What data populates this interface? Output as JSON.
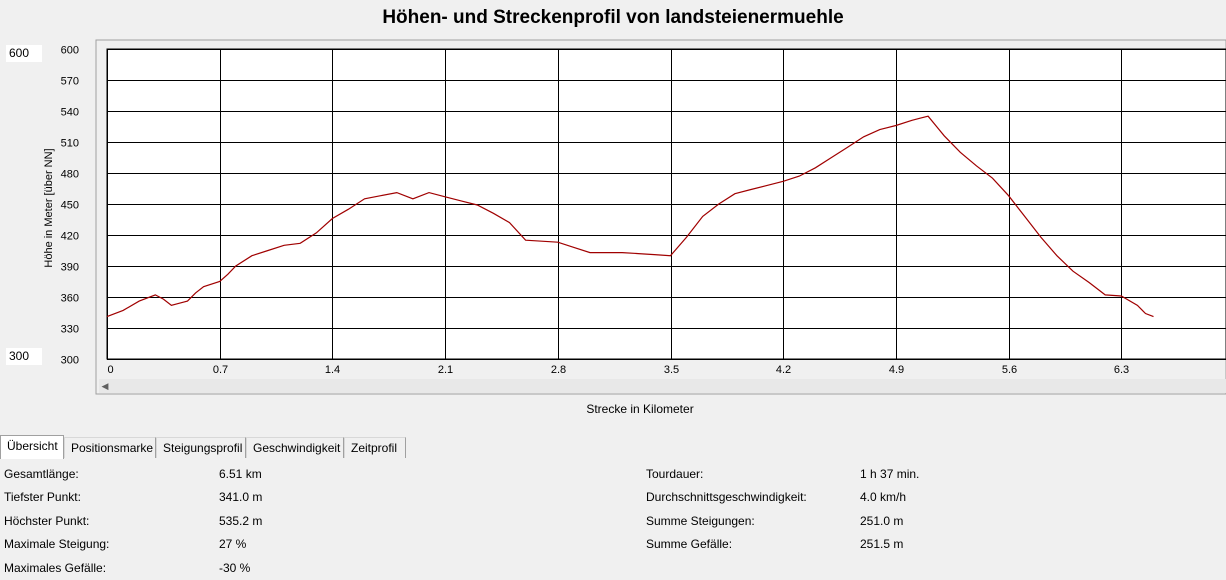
{
  "chart_data": {
    "type": "line",
    "title": "Höhen- und Streckenprofil von landsteienermuehle",
    "xlabel": "Strecke in Kilometer",
    "ylabel": "Höhe in Meter [über NN]",
    "xlim": [
      0,
      6.95
    ],
    "ylim": [
      300,
      600
    ],
    "x_ticks": [
      "0",
      "0.7",
      "1.4",
      "2.1",
      "2.8",
      "3.5",
      "4.2",
      "4.9",
      "5.6",
      "6.3"
    ],
    "y_ticks": [
      "600",
      "570",
      "540",
      "510",
      "480",
      "450",
      "420",
      "390",
      "360",
      "330",
      "300"
    ],
    "grid": true,
    "range_max": "600",
    "range_min": "300",
    "series": [
      {
        "color": "#a00000",
        "x": [
          0,
          0.1,
          0.2,
          0.3,
          0.35,
          0.4,
          0.45,
          0.5,
          0.55,
          0.6,
          0.7,
          0.75,
          0.8,
          0.9,
          1.0,
          1.1,
          1.2,
          1.3,
          1.4,
          1.5,
          1.6,
          1.7,
          1.8,
          1.9,
          2.0,
          2.1,
          2.2,
          2.3,
          2.4,
          2.5,
          2.6,
          2.7,
          2.8,
          2.9,
          3.0,
          3.1,
          3.2,
          3.3,
          3.4,
          3.5,
          3.6,
          3.7,
          3.8,
          3.9,
          4.0,
          4.1,
          4.2,
          4.3,
          4.4,
          4.5,
          4.6,
          4.7,
          4.8,
          4.9,
          5.0,
          5.05,
          5.1,
          5.2,
          5.3,
          5.4,
          5.5,
          5.6,
          5.7,
          5.8,
          5.9,
          6.0,
          6.1,
          6.2,
          6.3,
          6.4,
          6.45,
          6.5
        ],
        "y": [
          341,
          347,
          356,
          362,
          358,
          352,
          354,
          356,
          364,
          370,
          375,
          382,
          390,
          400,
          405,
          410,
          412,
          422,
          436,
          445,
          455,
          458,
          461,
          455,
          461,
          457,
          453,
          449,
          441,
          432,
          415,
          414,
          413,
          408,
          403,
          403,
          403,
          402,
          401,
          400,
          418,
          438,
          450,
          460,
          464,
          468,
          472,
          477,
          485,
          495,
          505,
          515,
          522,
          526,
          531,
          533,
          535,
          516,
          500,
          487,
          475,
          458,
          438,
          418,
          400,
          385,
          374,
          362,
          361,
          352,
          344,
          341
        ]
      }
    ]
  },
  "tabs": [
    "Übersicht",
    "Positionsmarke",
    "Steigungsprofil",
    "Geschwindigkeit",
    "Zeitprofil"
  ],
  "stats": {
    "left": [
      {
        "label": "Gesamtlänge:",
        "value": "6.51 km"
      },
      {
        "label": "Tiefster Punkt:",
        "value": "341.0 m"
      },
      {
        "label": "Höchster Punkt:",
        "value": "535.2 m"
      },
      {
        "label": "Maximale Steigung:",
        "value": "27 %"
      },
      {
        "label": "Maximales Gefälle:",
        "value": "-30 %"
      }
    ],
    "right": [
      {
        "label": "Tourdauer:",
        "value": "1 h 37 min."
      },
      {
        "label": "Durchschnittsgeschwindigkeit:",
        "value": "4.0 km/h"
      },
      {
        "label": "Summe Steigungen:",
        "value": "251.0 m"
      },
      {
        "label": "Summe Gefälle:",
        "value": "251.5 m"
      }
    ]
  }
}
